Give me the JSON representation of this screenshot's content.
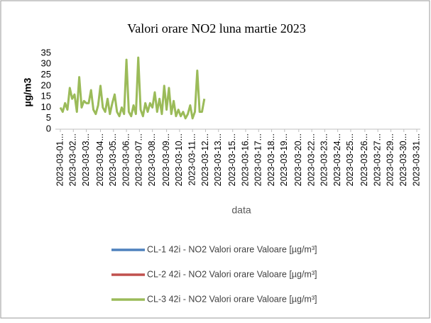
{
  "chart_data": {
    "type": "line",
    "title": "Valori orare NO2 luna martie 2023",
    "y_label": "µg/m3",
    "x_label": "data",
    "x": [
      0,
      0.2,
      0.4,
      0.6,
      0.8,
      1,
      1.2,
      1.4,
      1.6,
      1.8,
      2,
      2.2,
      2.4,
      2.6,
      2.8,
      3,
      3.2,
      3.4,
      3.6,
      3.8,
      4,
      4.2,
      4.4,
      4.6,
      4.8,
      5,
      5.2,
      5.4,
      5.6,
      5.8,
      6,
      6.2,
      6.4,
      6.6,
      6.8,
      7,
      7.2,
      7.4,
      7.6,
      7.8,
      8,
      8.2,
      8.4,
      8.6,
      8.8,
      9,
      9.2,
      9.4,
      9.6,
      9.8,
      10,
      10.2,
      10.4,
      10.6,
      10.8,
      11,
      11.2,
      11.4,
      11.6,
      11.8,
      12,
      12.2
    ],
    "series": [
      {
        "name": "CL-1 42i - NO2 Valori orare Valoare [µg/m³]",
        "color": "#4f81bd",
        "values": [
          null,
          null,
          null,
          null,
          null,
          null,
          null,
          null,
          null,
          null,
          null,
          null,
          null,
          null,
          null,
          null,
          null,
          null,
          null,
          null,
          null,
          null,
          null,
          null,
          null,
          null,
          null,
          null,
          null,
          null,
          null,
          null,
          null,
          null,
          null,
          null,
          null,
          null,
          null,
          null,
          null,
          null,
          null,
          null,
          null,
          null,
          null,
          null,
          null,
          null,
          null,
          null,
          null,
          null,
          null,
          null,
          null,
          null,
          null,
          null,
          null,
          null
        ]
      },
      {
        "name": "CL-2 42i - NO2 Valori orare Valoare [µg/m³]",
        "color": "#c0504d",
        "values": [
          null,
          null,
          null,
          null,
          null,
          null,
          null,
          null,
          null,
          null,
          null,
          null,
          null,
          null,
          null,
          null,
          null,
          null,
          null,
          null,
          null,
          null,
          null,
          null,
          null,
          null,
          null,
          null,
          null,
          null,
          null,
          null,
          null,
          null,
          null,
          null,
          null,
          null,
          null,
          null,
          null,
          null,
          null,
          null,
          null,
          null,
          null,
          null,
          null,
          null,
          null,
          null,
          null,
          null,
          null,
          null,
          null,
          null,
          null,
          null,
          null,
          null
        ]
      },
      {
        "name": "CL-3 42i - NO2 Valori orare Valoare [µg/m³]",
        "color": "#9bbb59",
        "values": [
          10,
          8,
          12,
          9,
          19,
          14,
          16,
          8,
          24,
          10,
          13,
          12,
          12,
          18,
          9,
          7,
          11,
          20,
          10,
          8,
          14,
          7,
          12,
          16,
          8,
          6,
          10,
          7,
          32,
          8,
          6,
          11,
          7,
          33,
          9,
          6,
          12,
          8,
          12,
          10,
          17,
          8,
          14,
          7,
          20,
          9,
          19,
          7,
          13,
          6,
          9,
          6,
          8,
          5,
          7,
          11,
          5,
          8,
          27,
          8,
          8,
          14
        ]
      }
    ],
    "xlim": [
      0,
      30.5
    ],
    "xticks": [
      {
        "value": 0,
        "label": "2023-03-01..."
      },
      {
        "value": 1.1,
        "label": "2023-03-02..."
      },
      {
        "value": 2.2,
        "label": "2023-03-03..."
      },
      {
        "value": 3.4,
        "label": "2023-03-04..."
      },
      {
        "value": 4.5,
        "label": "2023-03-05..."
      },
      {
        "value": 5.6,
        "label": "2023-03-06..."
      },
      {
        "value": 6.7,
        "label": "2023-03-07..."
      },
      {
        "value": 7.8,
        "label": "2023-03-08..."
      },
      {
        "value": 9,
        "label": "2023-03-09..."
      },
      {
        "value": 10.1,
        "label": "2023-03-10..."
      },
      {
        "value": 11.2,
        "label": "2023-03-11..."
      },
      {
        "value": 12.3,
        "label": "2023-03-12..."
      },
      {
        "value": 13.4,
        "label": "2023-03-13..."
      },
      {
        "value": 14.6,
        "label": "2023-03-15..."
      },
      {
        "value": 15.7,
        "label": "2023-03-16..."
      },
      {
        "value": 16.8,
        "label": "2023-03-17..."
      },
      {
        "value": 17.9,
        "label": "2023-03-18..."
      },
      {
        "value": 19,
        "label": "2023-03-19..."
      },
      {
        "value": 20.2,
        "label": "2023-03-20..."
      },
      {
        "value": 21.3,
        "label": "2023-03-22..."
      },
      {
        "value": 22.4,
        "label": "2023-03-23..."
      },
      {
        "value": 23.5,
        "label": "2023-03-24..."
      },
      {
        "value": 24.6,
        "label": "2023-03-25..."
      },
      {
        "value": 25.8,
        "label": "2023-03-26..."
      },
      {
        "value": 26.9,
        "label": "2023-03-27..."
      },
      {
        "value": 28,
        "label": "2023-03-29..."
      },
      {
        "value": 29.1,
        "label": "2023-03-30..."
      },
      {
        "value": 30.2,
        "label": "2023-03-31..."
      }
    ],
    "ylim": [
      0,
      35
    ],
    "yticks": [
      0,
      5,
      10,
      15,
      20,
      25,
      30,
      35
    ],
    "legend": "bottom"
  }
}
